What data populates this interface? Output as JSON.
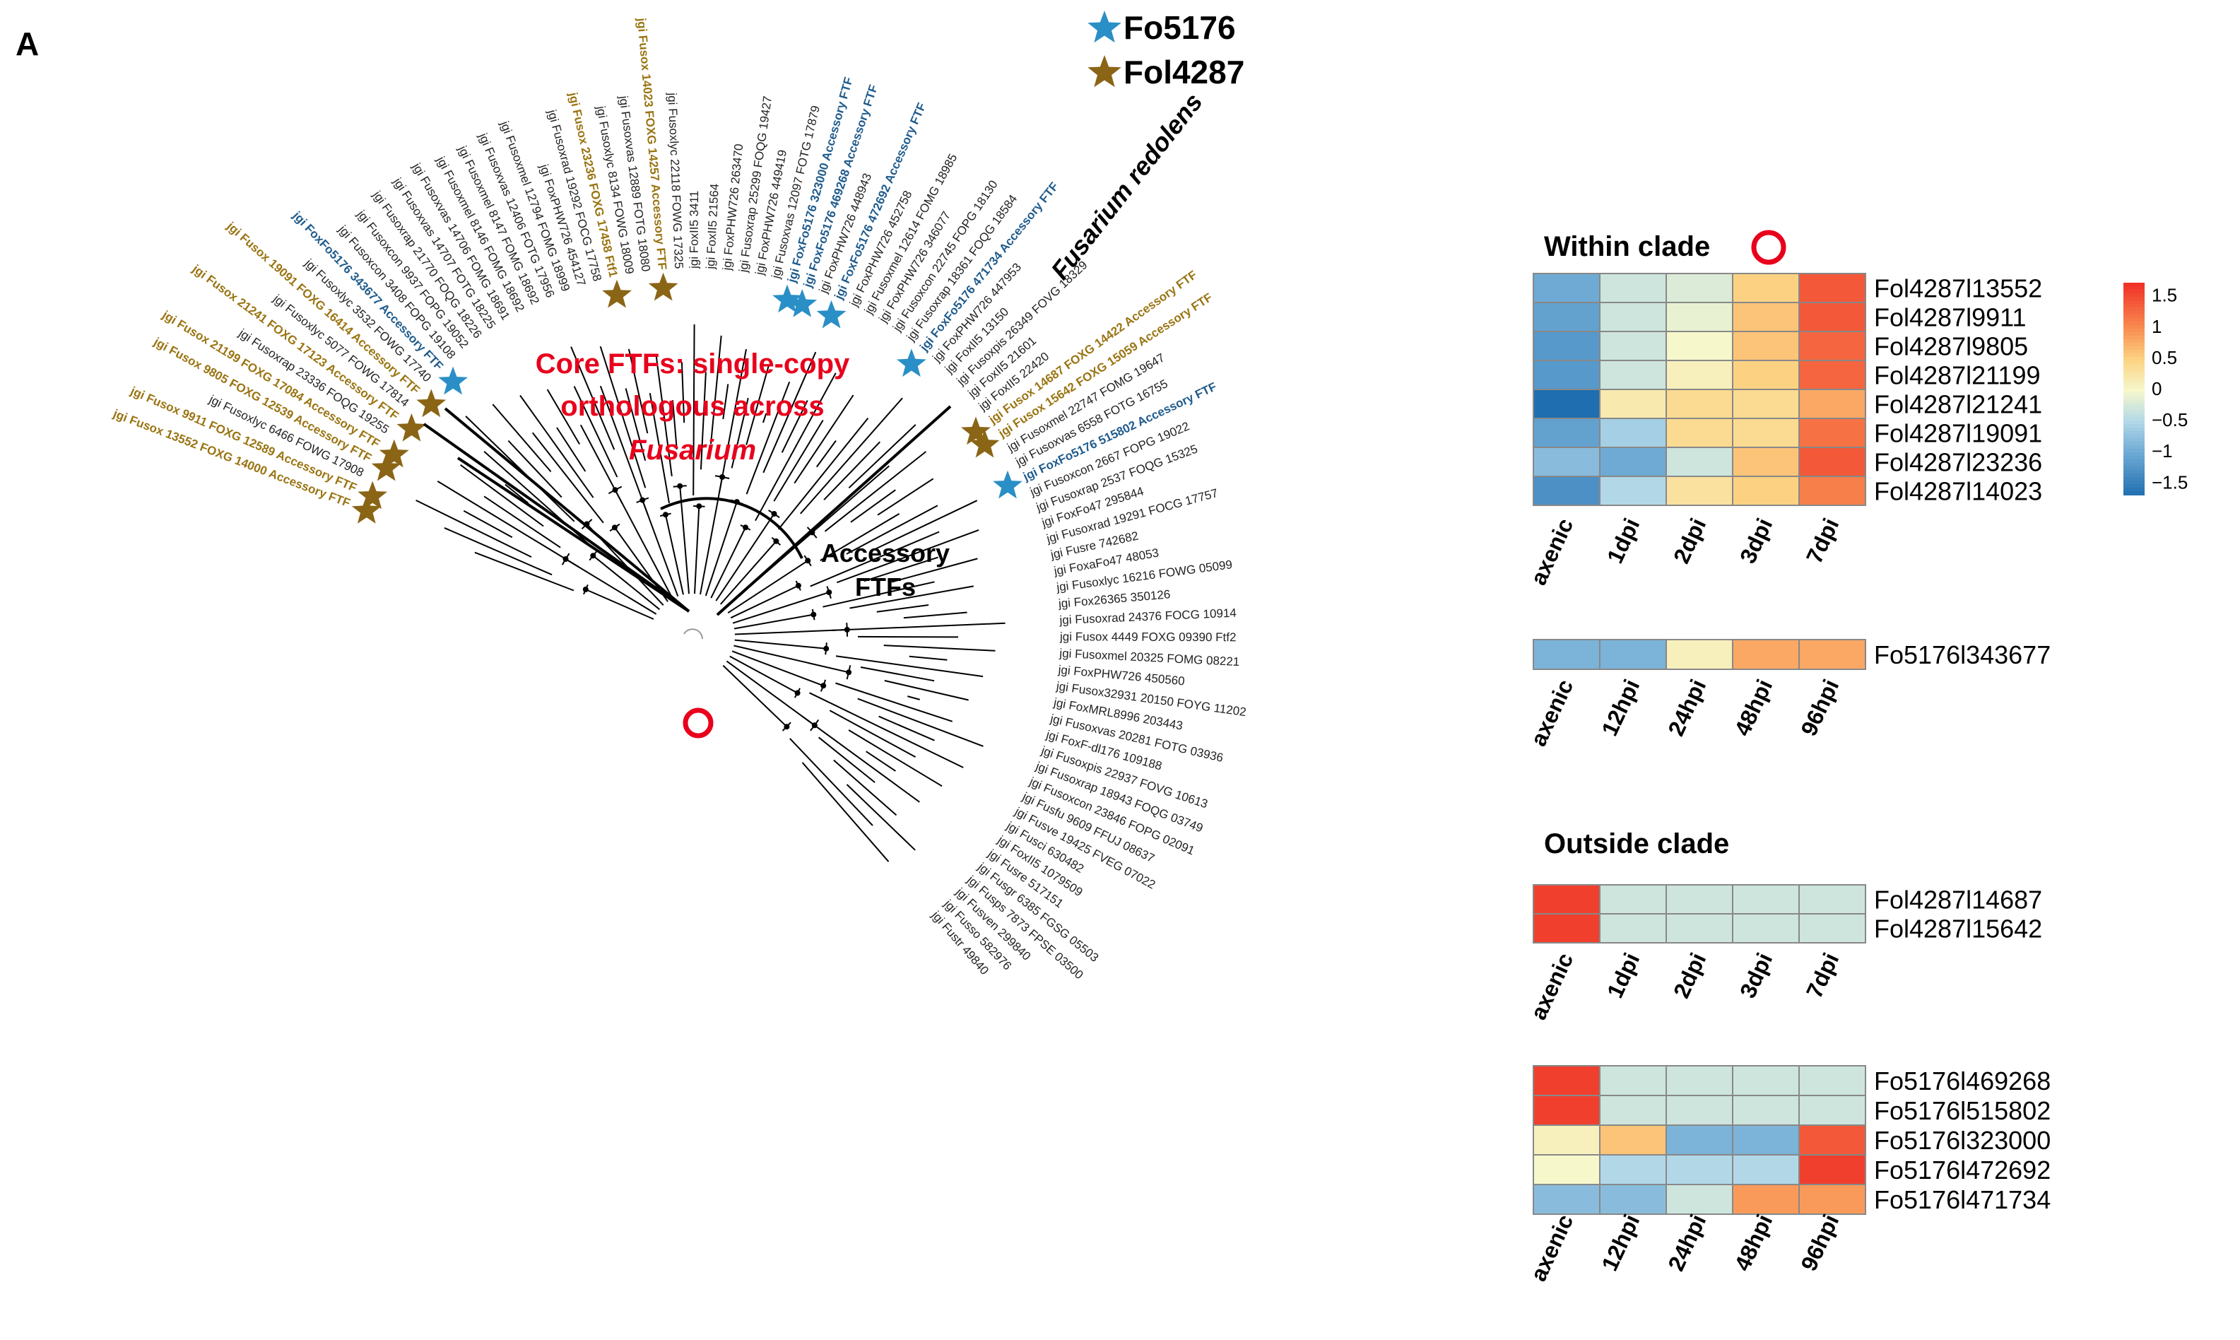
{
  "panel_label": "A",
  "legend": {
    "items": [
      {
        "label": "Fo5176",
        "color": "#2a8fc6"
      },
      {
        "label": "Fol4287",
        "color": "#8a6516"
      }
    ]
  },
  "annotations": {
    "core_title_1": "Core FTFs: single-copy",
    "core_title_2": "orthologous across",
    "core_title_3": "Fusarium",
    "accessory_1": "Accessory",
    "accessory_2": "FTFs",
    "redolens": "Fusarium redolens"
  },
  "colors": {
    "black": "#222222",
    "gold": "#9a7412",
    "blue": "#1f5b8c",
    "red": "#e8001c"
  },
  "tree": {
    "tips": [
      {
        "label": "jgi Fusox 13552 FOXG 14000 Accessory FTF",
        "cls": "gold",
        "star": "gold"
      },
      {
        "label": "jgi Fusox 9911 FOXG 12589 Accessory FTF",
        "cls": "gold",
        "star": "gold"
      },
      {
        "label": "jgi Fusoxlyc 6466 FOWG 17908",
        "cls": "black"
      },
      {
        "label": "jgi Fusox 9805 FOXG 12539 Accessory FTF",
        "cls": "gold",
        "star": "gold"
      },
      {
        "label": "jgi Fusox 21199 FOXG 17084 Accessory FTF",
        "cls": "gold",
        "star": "gold"
      },
      {
        "label": "jgi Fusoxrap 23336 FOQG 19255",
        "cls": "black"
      },
      {
        "label": "jgi Fusox 21241 FOXG 17123 Accessory FTF",
        "cls": "gold",
        "star": "gold"
      },
      {
        "label": "jgi Fusoxlyc 5077 FOWG 17814",
        "cls": "black"
      },
      {
        "label": "jgi Fusox 19091 FOXG 16414 Accessory FTF",
        "cls": "gold",
        "star": "gold"
      },
      {
        "label": "jgi Fusoxlyc 3532 FOWG 17740",
        "cls": "black"
      },
      {
        "label": "jgi FoxFo5176 343677 Accessory FTF",
        "cls": "blue",
        "star": "blue"
      },
      {
        "label": "jgi Fusoxcon 3408 FOPG 19108",
        "cls": "black"
      },
      {
        "label": "jgi Fusoxcon 9937 FOPG 19052",
        "cls": "black"
      },
      {
        "label": "jgi Fusoxrap 21770 FOQG 18226",
        "cls": "black"
      },
      {
        "label": "jgi Fusoxvas 14707 FOTG 18225",
        "cls": "black"
      },
      {
        "label": "jgi Fusoxvas 14706 FOMG 18691",
        "cls": "black"
      },
      {
        "label": "jgi Fusoxmel 8146 FOMG 18692",
        "cls": "black"
      },
      {
        "label": "jgi Fusoxmel 8147 FOMG 18692",
        "cls": "black"
      },
      {
        "label": "jgi Fusoxvas 12406 FOTG 17956",
        "cls": "black"
      },
      {
        "label": "jgi Fusoxmel 12794 FOMG 18999",
        "cls": "black"
      },
      {
        "label": "jgi FoxPHW726 454127",
        "cls": "black"
      },
      {
        "label": "jgi Fusoxrad 19292 FOCG 17758",
        "cls": "black"
      },
      {
        "label": "jgi Fusox 23236 FOXG 17458 Ftf1",
        "cls": "gold",
        "star": "gold"
      },
      {
        "label": "jgi Fusoxlyc 8134 FOWG 18009",
        "cls": "black"
      },
      {
        "label": "jgi Fusoxvas 12889 FOTG 18080",
        "cls": "black"
      },
      {
        "label": "jgi Fusox 14023 FOXG 14257 Accessory FTF",
        "cls": "gold",
        "star": "gold"
      },
      {
        "label": "jgi Fusoxlyc 22118 FOWG 17325",
        "cls": "black"
      },
      {
        "label": "jgi FoxII5 3411",
        "cls": "black"
      },
      {
        "label": "jgi FoxII5 21564",
        "cls": "black"
      },
      {
        "label": "jgi FoxPHW726 263470",
        "cls": "black"
      },
      {
        "label": "jgi Fusoxrap 25299 FOQG 19427",
        "cls": "black"
      },
      {
        "label": "jgi FoxPHW726 449419",
        "cls": "black"
      },
      {
        "label": "jgi Fusoxvas 12097 FOTG 17879",
        "cls": "black"
      },
      {
        "label": "jgi FoxFo5176 323000 Accessory FTF",
        "cls": "blue",
        "star": "blue"
      },
      {
        "label": "jgi FoxFo5176 469268 Accessory FTF",
        "cls": "blue",
        "star": "blue"
      },
      {
        "label": "jgi FoxPHW726 448943",
        "cls": "black"
      },
      {
        "label": "jgi FoxFo5176 472692 Accessory FTF",
        "cls": "blue",
        "star": "blue"
      },
      {
        "label": "jgi FoxPHW726 452758",
        "cls": "black"
      },
      {
        "label": "jgi Fusoxmel 12614 FOMG 18985",
        "cls": "black"
      },
      {
        "label": "jgi FoxPHW726 346077",
        "cls": "black"
      },
      {
        "label": "jgi Fusoxcon 22745 FOPG 18130",
        "cls": "black"
      },
      {
        "label": "jgi Fusoxrap 18361 FOQG 18584",
        "cls": "black"
      },
      {
        "label": "jgi FoxFo5176 471734 Accessory FTF",
        "cls": "blue",
        "star": "blue"
      },
      {
        "label": "jgi FoxPHW726 447953",
        "cls": "black"
      },
      {
        "label": "jgi FoxII5 13150",
        "cls": "black"
      },
      {
        "label": "jgi Fusoxpis 26349 FOVG 18329",
        "cls": "black"
      },
      {
        "label": "jgi FoxII5 21601",
        "cls": "black"
      },
      {
        "label": "jgi FoxII5 22420",
        "cls": "black"
      },
      {
        "label": "jgi Fusox 14687 FOXG 14422 Accessory FTF",
        "cls": "gold",
        "star": "gold"
      },
      {
        "label": "jgi Fusox 15642 FOXG 15059 Accessory FTF",
        "cls": "gold",
        "star": "gold"
      },
      {
        "label": "jgi Fusoxmel 22747 FOMG 19647",
        "cls": "black"
      },
      {
        "label": "jgi Fusoxvas 6558 FOTG 16755",
        "cls": "black"
      },
      {
        "label": "jgi FoxFo5176 515802 Accessory FTF",
        "cls": "blue",
        "star": "blue"
      },
      {
        "label": "jgi Fusoxcon 2667 FOPG 19022",
        "cls": "black"
      },
      {
        "label": "jgi Fusoxrap 2537 FOQG 15325",
        "cls": "black"
      },
      {
        "label": "jgi FoxFo47 295844",
        "cls": "black"
      },
      {
        "label": "jgi Fusoxrad 19291 FOCG 17757",
        "cls": "black"
      },
      {
        "label": "jgi Fusre 742682",
        "cls": "black"
      },
      {
        "label": "jgi FoxaFo47 48053",
        "cls": "black"
      },
      {
        "label": "jgi Fusoxlyc 16216 FOWG 05099",
        "cls": "black"
      },
      {
        "label": "jgi Fox26365 350126",
        "cls": "black"
      },
      {
        "label": "jgi Fusoxrad 24376 FOCG 10914",
        "cls": "black"
      },
      {
        "label": "jgi Fusox 4449 FOXG 09390 Ftf2",
        "cls": "black"
      },
      {
        "label": "jgi Fusoxmel 20325 FOMG 08221",
        "cls": "black"
      },
      {
        "label": "jgi FoxPHW726 450560",
        "cls": "black"
      },
      {
        "label": "jgi Fusox32931 20150 FOYG 11202",
        "cls": "black"
      },
      {
        "label": "jgi FoxMRL8996 203443",
        "cls": "black"
      },
      {
        "label": "jgi Fusoxvas 20281 FOTG 03936",
        "cls": "black"
      },
      {
        "label": "jgi FoxF-dl176 109188",
        "cls": "black"
      },
      {
        "label": "jgi Fusoxpis 22937 FOVG 10613",
        "cls": "black"
      },
      {
        "label": "jgi Fusoxrap 18943 FOQG 03749",
        "cls": "black"
      },
      {
        "label": "jgi Fusoxcon 23846 FOPG 02091",
        "cls": "black"
      },
      {
        "label": "jgi Fusfu 9609 FFUJ 08637",
        "cls": "black"
      },
      {
        "label": "jgi Fusve 19425 FVEG 07022",
        "cls": "black"
      },
      {
        "label": "jgi Fusci 630482",
        "cls": "black"
      },
      {
        "label": "jgi FoxII5 1079509",
        "cls": "black"
      },
      {
        "label": "jgi Fusre 517151",
        "cls": "black"
      },
      {
        "label": "jgi Fusgr 6385 FGSG 05503",
        "cls": "black"
      },
      {
        "label": "jgi Fusps 7873 FPSE 03500",
        "cls": "black"
      },
      {
        "label": "jgi Fusven 299840",
        "cls": "black"
      },
      {
        "label": "jgi Fusso 582976",
        "cls": "black"
      },
      {
        "label": "jgi Fustr 49840",
        "cls": "black"
      }
    ]
  },
  "heatmaps": {
    "within_title": "Within clade",
    "outside_title": "Outside clade",
    "fol_cols": [
      "axenic",
      "1dpi",
      "2dpi",
      "3dpi",
      "7dpi"
    ],
    "fo_cols": [
      "axenic",
      "12hpi",
      "24hpi",
      "48hpi",
      "96hpi"
    ],
    "within_fol": {
      "rows": [
        "Fol4287l13552",
        "Fol4287l9911",
        "Fol4287l9805",
        "Fol4287l21199",
        "Fol4287l21241",
        "Fol4287l19091",
        "Fol4287l23236",
        "Fol4287l14023"
      ],
      "values": [
        [
          -1.0,
          -0.3,
          -0.2,
          0.5,
          1.4
        ],
        [
          -1.1,
          -0.3,
          -0.1,
          0.6,
          1.4
        ],
        [
          -1.2,
          -0.3,
          0.0,
          0.6,
          1.3
        ],
        [
          -1.2,
          -0.3,
          0.1,
          0.5,
          1.3
        ],
        [
          -1.7,
          0.2,
          0.4,
          0.4,
          0.8
        ],
        [
          -1.1,
          -0.6,
          0.4,
          0.4,
          1.2
        ],
        [
          -0.8,
          -1.0,
          -0.3,
          0.6,
          1.4
        ],
        [
          -1.3,
          -0.5,
          0.3,
          0.5,
          1.1
        ]
      ]
    },
    "within_fo": {
      "rows": [
        "Fo5176l343677"
      ],
      "values": [
        [
          -0.9,
          -0.9,
          0.1,
          0.8,
          0.8
        ]
      ]
    },
    "outside_fol": {
      "rows": [
        "Fol4287l14687",
        "Fol4287l15642"
      ],
      "values": [
        [
          1.6,
          -0.3,
          -0.3,
          -0.3,
          -0.3
        ],
        [
          1.6,
          -0.3,
          -0.3,
          -0.3,
          -0.3
        ]
      ]
    },
    "outside_fo": {
      "rows": [
        "Fo5176l469268",
        "Fo5176l515802",
        "Fo5176l323000",
        "Fo5176l472692",
        "Fo5176l471734"
      ],
      "values": [
        [
          1.6,
          -0.3,
          -0.3,
          -0.3,
          -0.3
        ],
        [
          1.6,
          -0.3,
          -0.3,
          -0.3,
          -0.3
        ],
        [
          0.1,
          0.6,
          -0.9,
          -0.9,
          1.4
        ],
        [
          0.0,
          -0.5,
          -0.5,
          -0.5,
          1.6
        ],
        [
          -0.8,
          -0.8,
          -0.3,
          0.9,
          0.9
        ]
      ]
    },
    "scale": {
      "min": -1.7,
      "max": 1.7,
      "ticks": [
        "1.5",
        "1",
        "0.5",
        "0",
        "−0.5",
        "−1",
        "−1.5"
      ],
      "tick_values": [
        1.5,
        1,
        0.5,
        0,
        -0.5,
        -1,
        -1.5
      ]
    }
  }
}
